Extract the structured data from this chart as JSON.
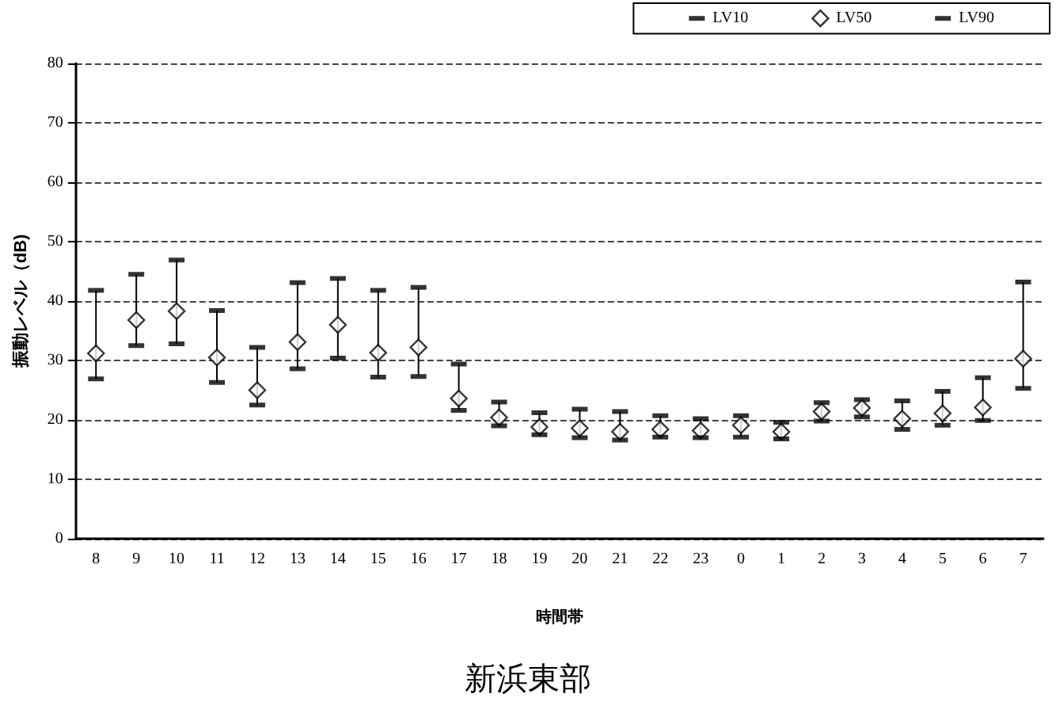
{
  "chart_data": {
    "type": "scatter",
    "title": "新浜東部",
    "xlabel": "時間帯",
    "ylabel": "振動レベル（dB)",
    "categories": [
      "8",
      "9",
      "10",
      "11",
      "12",
      "13",
      "14",
      "15",
      "16",
      "17",
      "18",
      "19",
      "20",
      "21",
      "22",
      "23",
      "0",
      "1",
      "2",
      "3",
      "4",
      "5",
      "6",
      "7"
    ],
    "series": [
      {
        "name": "LV10",
        "color": "#000000",
        "values": [
          41.8,
          44.5,
          46.9,
          38.4,
          32.2,
          43.1,
          43.8,
          41.8,
          42.3,
          29.4,
          23.0,
          21.2,
          21.8,
          21.4,
          20.7,
          20.2,
          20.7,
          19.6,
          22.9,
          23.4,
          23.2,
          24.8,
          27.1,
          43.2
        ]
      },
      {
        "name": "LV50",
        "color": "#000000",
        "marker": "diamond",
        "values": [
          31.2,
          36.8,
          38.3,
          30.5,
          25.0,
          33.1,
          36.0,
          31.3,
          32.2,
          23.6,
          20.4,
          18.8,
          18.6,
          18.0,
          18.4,
          18.2,
          19.1,
          18.0,
          21.4,
          22.0,
          20.2,
          21.1,
          22.1,
          30.3
        ]
      },
      {
        "name": "LV90",
        "color": "#000000",
        "values": [
          26.9,
          32.5,
          32.8,
          26.3,
          22.5,
          28.6,
          30.4,
          27.2,
          27.3,
          21.6,
          19.0,
          17.5,
          17.0,
          16.6,
          17.1,
          17.0,
          17.1,
          16.8,
          19.8,
          20.5,
          18.4,
          19.1,
          19.9,
          25.3
        ]
      }
    ],
    "ylim": [
      0,
      80
    ],
    "yticks": [
      0,
      10,
      20,
      30,
      40,
      50,
      60,
      70,
      80
    ],
    "grid": "y",
    "legend": "top right"
  }
}
